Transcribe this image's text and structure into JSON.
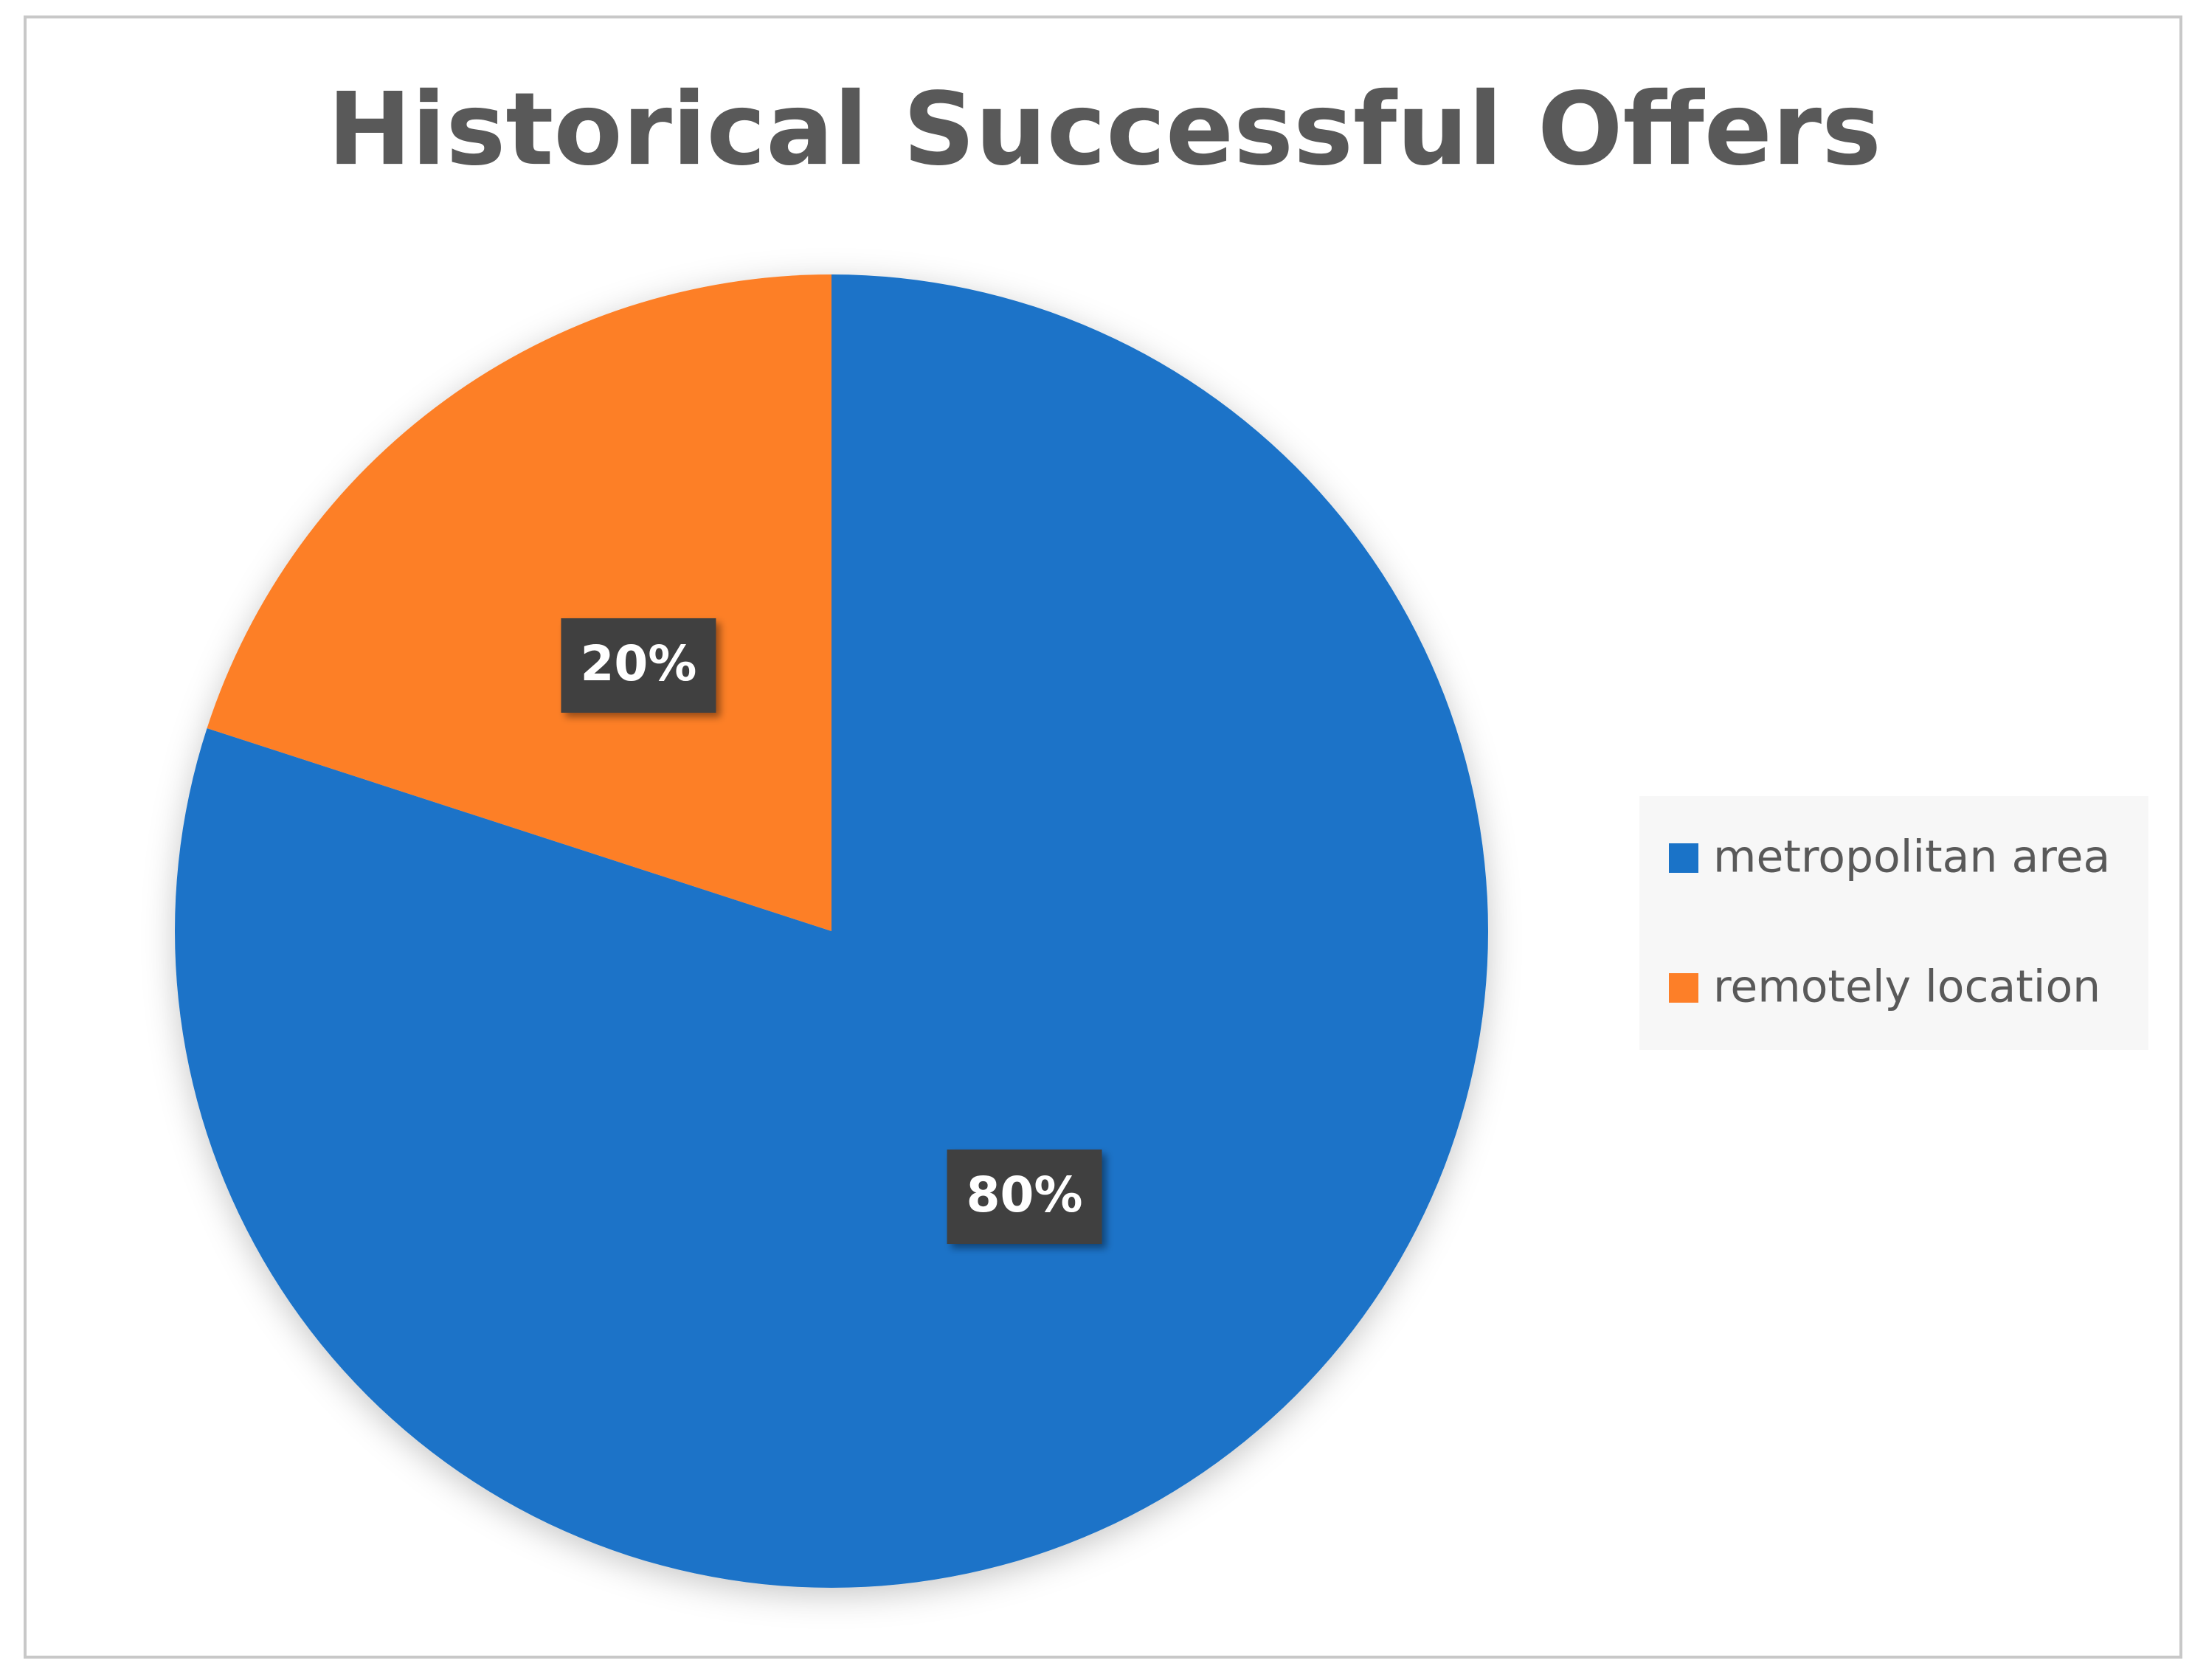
{
  "chart_data": {
    "type": "pie",
    "title": "Historical Successful Offers",
    "categories": [
      "metropolitan area",
      "remotely location"
    ],
    "values": [
      80,
      20
    ],
    "value_labels": [
      "80%",
      "20%"
    ],
    "colors": [
      "#1a73c8",
      "#fd7f28"
    ],
    "legend": "right"
  }
}
